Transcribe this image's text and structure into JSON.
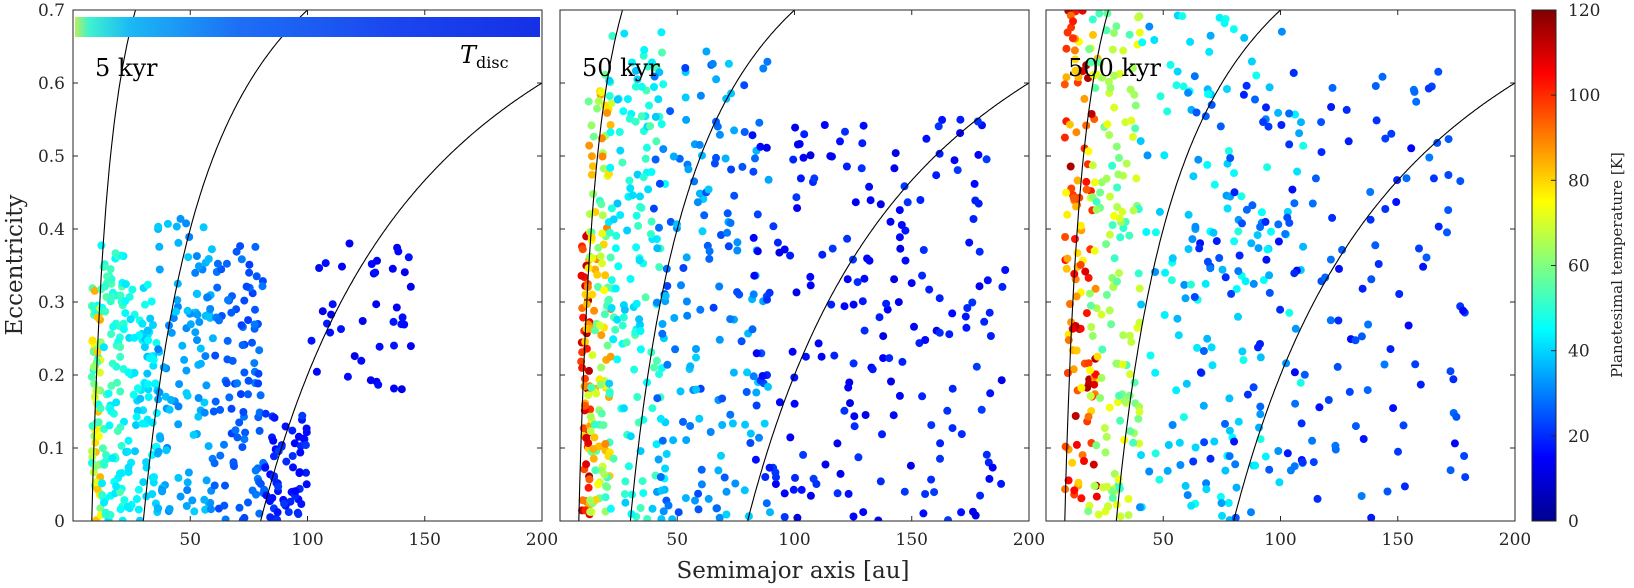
{
  "chart_data": {
    "type": "scatter",
    "xlabel": "Semimajor axis [au]",
    "ylabel": "Eccentricity",
    "xlim": [
      0,
      200
    ],
    "ylim": [
      0,
      0.7
    ],
    "x_ticks": [
      50,
      100,
      150,
      200
    ],
    "y_ticks": [
      "0",
      "0.1",
      "0.2",
      "0.3",
      "0.4",
      "0.5",
      "0.6",
      "0.7"
    ],
    "colorbar": {
      "label": "Planetesimal temperature [K]",
      "range": [
        0,
        120
      ],
      "ticks": [
        "0",
        "20",
        "40",
        "60",
        "80",
        "100",
        "120"
      ],
      "colormap": "jet"
    },
    "panels": [
      {
        "label": "5 kyr",
        "disc_bar_label": "T",
        "disc_bar_sub": "disc",
        "resonance_curves_a0_au": [
          8,
          30,
          80
        ],
        "clusters": [
          {
            "a": [
              8,
              12
            ],
            "e": [
              0.0,
              0.32
            ],
            "temp": [
              45,
              85
            ],
            "n": 70
          },
          {
            "a": [
              12,
              22
            ],
            "e": [
              0.0,
              0.38
            ],
            "temp": [
              42,
              55
            ],
            "n": 90
          },
          {
            "a": [
              22,
              36
            ],
            "e": [
              0.0,
              0.33
            ],
            "temp": [
              38,
              48
            ],
            "n": 90
          },
          {
            "a": [
              36,
              60
            ],
            "e": [
              0.0,
              0.42
            ],
            "temp": [
              30,
              40
            ],
            "n": 110
          },
          {
            "a": [
              60,
              82
            ],
            "e": [
              0.0,
              0.38
            ],
            "temp": [
              22,
              30
            ],
            "n": 100
          },
          {
            "a": [
              82,
              100
            ],
            "e": [
              0.0,
              0.15
            ],
            "temp": [
              15,
              22
            ],
            "n": 60
          },
          {
            "a": [
              100,
              145
            ],
            "e": [
              0.15,
              0.39
            ],
            "temp": [
              12,
              18
            ],
            "n": 40
          }
        ]
      },
      {
        "label": "50 kyr",
        "resonance_curves_a0_au": [
          8,
          30,
          80
        ],
        "clusters": [
          {
            "a": [
              9,
              13
            ],
            "e": [
              0.0,
              0.4
            ],
            "temp": [
              80,
              115
            ],
            "n": 60
          },
          {
            "a": [
              12,
              22
            ],
            "e": [
              0.0,
              0.62
            ],
            "temp": [
              50,
              90
            ],
            "n": 120
          },
          {
            "a": [
              20,
              45
            ],
            "e": [
              0.0,
              0.67
            ],
            "temp": [
              38,
              55
            ],
            "n": 150
          },
          {
            "a": [
              40,
              90
            ],
            "e": [
              0.0,
              0.65
            ],
            "temp": [
              22,
              40
            ],
            "n": 170
          },
          {
            "a": [
              80,
              190
            ],
            "e": [
              0.0,
              0.55
            ],
            "temp": [
              12,
              22
            ],
            "n": 200
          }
        ]
      },
      {
        "label": "500 kyr",
        "resonance_curves_a0_au": [
          8,
          30,
          80
        ],
        "clusters": [
          {
            "a": [
              8,
              22
            ],
            "e": [
              0.03,
              0.7
            ],
            "temp": [
              75,
              115
            ],
            "n": 120
          },
          {
            "a": [
              18,
              40
            ],
            "e": [
              0.0,
              0.7
            ],
            "temp": [
              50,
              75
            ],
            "n": 150
          },
          {
            "a": [
              40,
              110
            ],
            "e": [
              0.0,
              0.7
            ],
            "temp": [
              30,
              50
            ],
            "n": 160
          },
          {
            "a": [
              60,
              180
            ],
            "e": [
              0.0,
              0.62
            ],
            "temp": [
              15,
              30
            ],
            "n": 160
          }
        ]
      }
    ]
  }
}
